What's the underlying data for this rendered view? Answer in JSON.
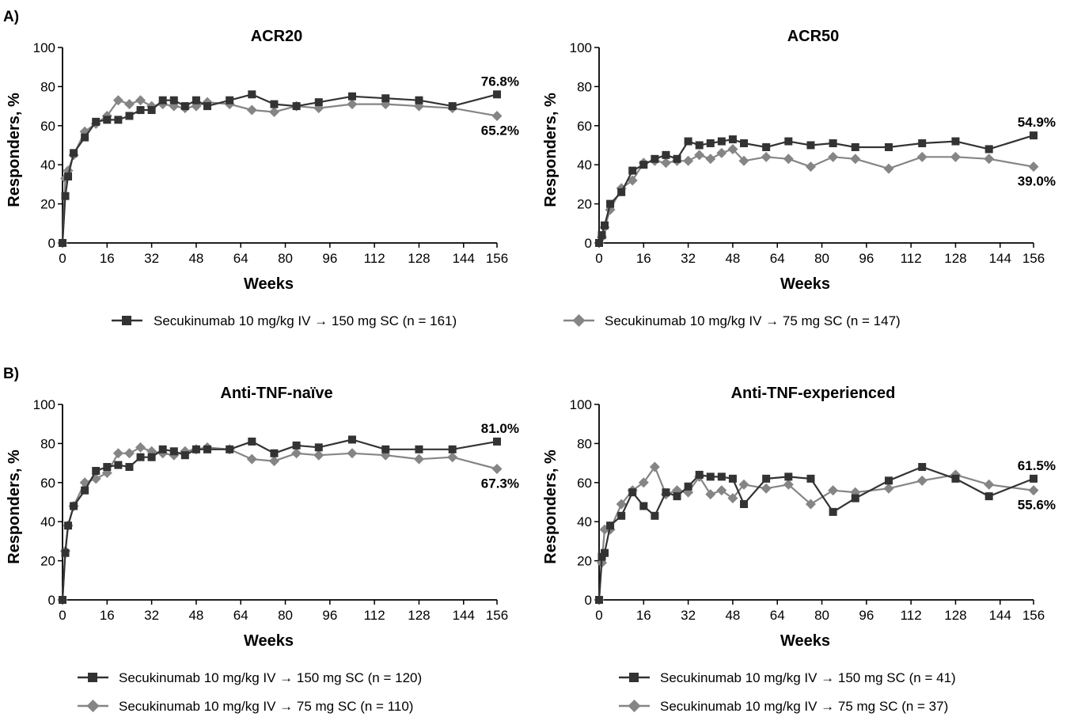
{
  "panel_labels": [
    "A)",
    "B)"
  ],
  "colors": {
    "series_150": "#333333",
    "series_75": "#858585",
    "axis": "#000000"
  },
  "legends": [
    [
      {
        "marker": "square",
        "text": "Secukinumab 10 mg/kg IV → 150 mg SC (n = 161)"
      },
      {
        "marker": "diamond",
        "text": "Secukinumab 10 mg/kg IV → 75 mg SC (n = 147)"
      }
    ],
    [
      {
        "marker": "square",
        "text": "Secukinumab 10 mg/kg IV → 150 mg SC (n = 120)"
      },
      {
        "marker": "diamond",
        "text": "Secukinumab 10 mg/kg IV → 75 mg SC (n = 110)"
      }
    ],
    [
      {
        "marker": "square",
        "text": "Secukinumab 10 mg/kg IV → 150 mg SC (n = 41)"
      },
      {
        "marker": "diamond",
        "text": "Secukinumab 10 mg/kg IV → 75 mg SC (n = 37)"
      }
    ]
  ],
  "chart_data": [
    {
      "type": "line",
      "title": "ACR20",
      "xlabel": "Weeks",
      "ylabel": "Responders, %",
      "xlim": [
        0,
        156
      ],
      "ylim": [
        0,
        100
      ],
      "xticks": [
        0,
        16,
        32,
        48,
        64,
        80,
        96,
        112,
        128,
        144,
        156
      ],
      "yticks": [
        0,
        20,
        40,
        60,
        80,
        100
      ],
      "series": [
        {
          "marker": "square",
          "end_label": "76.8%",
          "x": [
            0,
            1,
            2,
            4,
            8,
            12,
            16,
            20,
            24,
            28,
            32,
            36,
            40,
            44,
            48,
            52,
            60,
            68,
            76,
            84,
            92,
            104,
            116,
            128,
            140,
            156
          ],
          "y": [
            0,
            24,
            34,
            46,
            54,
            62,
            63,
            63,
            65,
            68,
            68,
            73,
            73,
            70,
            73,
            70,
            73,
            76,
            71,
            70,
            72,
            75,
            74,
            73,
            70,
            76
          ]
        },
        {
          "marker": "diamond",
          "end_label": "65.2%",
          "x": [
            0,
            1,
            2,
            4,
            8,
            12,
            16,
            20,
            24,
            28,
            32,
            36,
            40,
            44,
            48,
            52,
            60,
            68,
            76,
            84,
            92,
            104,
            116,
            128,
            140,
            156
          ],
          "y": [
            0,
            33,
            37,
            45,
            57,
            61,
            65,
            73,
            71,
            73,
            70,
            71,
            70,
            69,
            70,
            72,
            71,
            68,
            67,
            70,
            69,
            71,
            71,
            70,
            69,
            65
          ]
        }
      ]
    },
    {
      "type": "line",
      "title": "ACR50",
      "xlabel": "Weeks",
      "ylabel": "Responders, %",
      "xlim": [
        0,
        156
      ],
      "ylim": [
        0,
        100
      ],
      "xticks": [
        0,
        16,
        32,
        48,
        64,
        80,
        96,
        112,
        128,
        144,
        156
      ],
      "yticks": [
        0,
        20,
        40,
        60,
        80,
        100
      ],
      "series": [
        {
          "marker": "square",
          "end_label": "54.9%",
          "x": [
            0,
            1,
            2,
            4,
            8,
            12,
            16,
            20,
            24,
            28,
            32,
            36,
            40,
            44,
            48,
            52,
            60,
            68,
            76,
            84,
            92,
            104,
            116,
            128,
            140,
            156
          ],
          "y": [
            0,
            4,
            9,
            20,
            26,
            37,
            40,
            43,
            45,
            43,
            52,
            50,
            51,
            52,
            53,
            51,
            49,
            52,
            50,
            51,
            49,
            49,
            51,
            52,
            48,
            55
          ]
        },
        {
          "marker": "diamond",
          "end_label": "39.0%",
          "x": [
            0,
            1,
            2,
            4,
            8,
            12,
            16,
            20,
            24,
            28,
            32,
            36,
            40,
            44,
            48,
            52,
            60,
            68,
            76,
            84,
            92,
            104,
            116,
            128,
            140,
            156
          ],
          "y": [
            0,
            3,
            8,
            17,
            28,
            32,
            41,
            42,
            41,
            42,
            42,
            45,
            43,
            46,
            48,
            42,
            44,
            43,
            39,
            44,
            43,
            38,
            44,
            44,
            43,
            39
          ]
        }
      ]
    },
    {
      "type": "line",
      "title": "Anti-TNF-naïve",
      "xlabel": "Weeks",
      "ylabel": "Responders, %",
      "xlim": [
        0,
        156
      ],
      "ylim": [
        0,
        100
      ],
      "xticks": [
        0,
        16,
        32,
        48,
        64,
        80,
        96,
        112,
        128,
        144,
        156
      ],
      "yticks": [
        0,
        20,
        40,
        60,
        80,
        100
      ],
      "series": [
        {
          "marker": "square",
          "end_label": "81.0%",
          "x": [
            0,
            1,
            2,
            4,
            8,
            12,
            16,
            20,
            24,
            28,
            32,
            36,
            40,
            44,
            48,
            52,
            60,
            68,
            76,
            84,
            92,
            104,
            116,
            128,
            140,
            156
          ],
          "y": [
            0,
            24,
            38,
            48,
            56,
            66,
            68,
            69,
            68,
            73,
            73,
            77,
            76,
            74,
            77,
            77,
            77,
            81,
            75,
            79,
            78,
            82,
            77,
            77,
            77,
            81
          ]
        },
        {
          "marker": "diamond",
          "end_label": "67.3%",
          "x": [
            0,
            1,
            2,
            4,
            8,
            12,
            16,
            20,
            24,
            28,
            32,
            36,
            40,
            44,
            48,
            52,
            60,
            68,
            76,
            84,
            92,
            104,
            116,
            128,
            140,
            156
          ],
          "y": [
            0,
            25,
            38,
            48,
            60,
            62,
            65,
            75,
            75,
            78,
            76,
            75,
            74,
            76,
            77,
            78,
            77,
            72,
            71,
            75,
            74,
            75,
            74,
            72,
            73,
            67
          ]
        }
      ]
    },
    {
      "type": "line",
      "title": "Anti-TNF-experienced",
      "xlabel": "Weeks",
      "ylabel": "Responders, %",
      "xlim": [
        0,
        156
      ],
      "ylim": [
        0,
        100
      ],
      "xticks": [
        0,
        16,
        32,
        48,
        64,
        80,
        96,
        112,
        128,
        144,
        156
      ],
      "yticks": [
        0,
        20,
        40,
        60,
        80,
        100
      ],
      "series": [
        {
          "marker": "square",
          "end_label": "61.5%",
          "x": [
            0,
            1,
            2,
            4,
            8,
            12,
            16,
            20,
            24,
            28,
            32,
            36,
            40,
            44,
            48,
            52,
            60,
            68,
            76,
            84,
            92,
            104,
            116,
            128,
            140,
            156
          ],
          "y": [
            0,
            22,
            24,
            38,
            43,
            55,
            48,
            43,
            55,
            53,
            58,
            64,
            63,
            63,
            62,
            49,
            62,
            63,
            62,
            45,
            52,
            61,
            68,
            62,
            53,
            62
          ]
        },
        {
          "marker": "diamond",
          "end_label": "55.6%",
          "x": [
            0,
            1,
            2,
            4,
            8,
            12,
            16,
            20,
            24,
            28,
            32,
            36,
            40,
            44,
            48,
            52,
            60,
            68,
            76,
            84,
            92,
            104,
            116,
            128,
            140,
            156
          ],
          "y": [
            0,
            19,
            36,
            36,
            49,
            56,
            60,
            68,
            54,
            56,
            55,
            63,
            54,
            56,
            52,
            59,
            57,
            59,
            49,
            56,
            55,
            57,
            61,
            64,
            59,
            56
          ]
        }
      ]
    }
  ]
}
